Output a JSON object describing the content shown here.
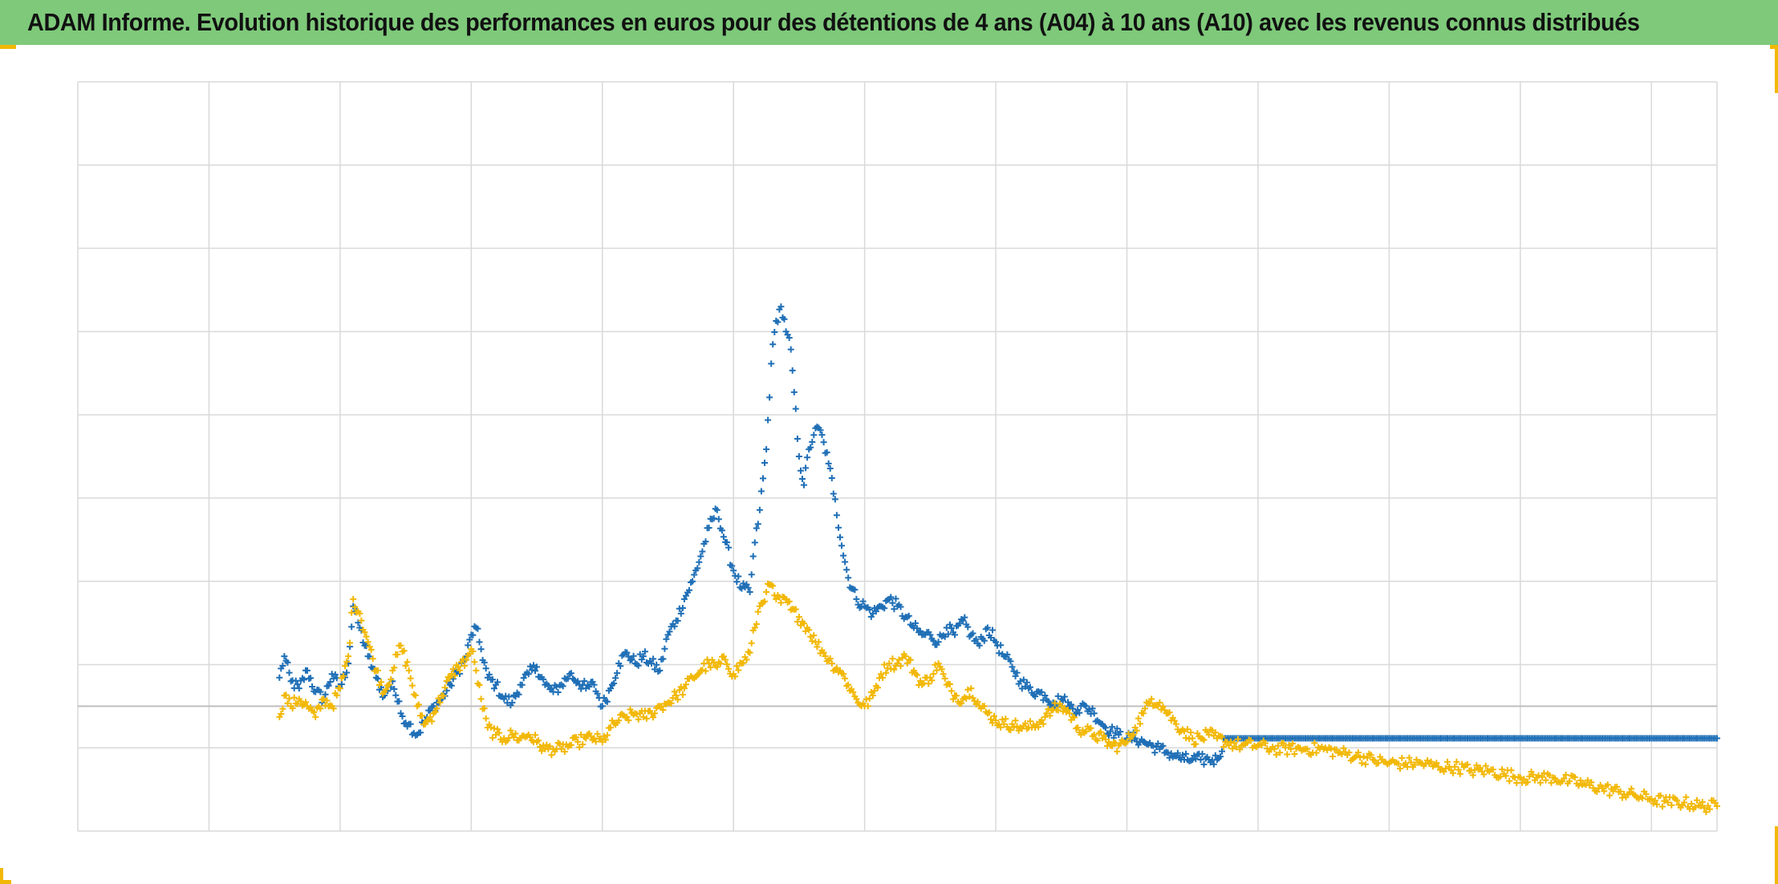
{
  "title": "ADAM Informe. Evolution historique des performances en euros pour des détentions de 4 ans (A04) à 10 ans (A10) avec les revenus connus distribués",
  "colors": {
    "header_bg": "#7ec97a",
    "frame_accent": "#f2b807",
    "grid": "#d9d9d9",
    "zero_line": "#bfbfbf"
  },
  "chart_data": {
    "type": "scatter",
    "title": "ADAM Informe. Evolution historique des performances en euros pour des détentions de 4 ans (A04) à 10 ans (A10) avec les revenus connus distribués",
    "xlabel": "",
    "ylabel": "",
    "axis_labels_visible": false,
    "legend": "none",
    "grid": true,
    "xlim": [
      0,
      1000
    ],
    "ylim": [
      -0.35,
      1.75
    ],
    "marker": "+",
    "series": [
      {
        "color": "#1f6fb6",
        "points": [
          [
            123,
            0.08
          ],
          [
            126,
            0.14
          ],
          [
            130,
            0.07
          ],
          [
            135,
            0.05
          ],
          [
            140,
            0.1
          ],
          [
            145,
            0.04
          ],
          [
            150,
            0.02
          ],
          [
            155,
            0.09
          ],
          [
            160,
            0.05
          ],
          [
            165,
            0.12
          ],
          [
            168,
            0.28
          ],
          [
            172,
            0.22
          ],
          [
            177,
            0.14
          ],
          [
            182,
            0.08
          ],
          [
            187,
            0.03
          ],
          [
            192,
            0.07
          ],
          [
            197,
            -0.02
          ],
          [
            202,
            -0.05
          ],
          [
            207,
            -0.08
          ],
          [
            212,
            -0.04
          ],
          [
            217,
            0.0
          ],
          [
            222,
            0.02
          ],
          [
            227,
            0.06
          ],
          [
            232,
            0.1
          ],
          [
            237,
            0.14
          ],
          [
            240,
            0.2
          ],
          [
            243,
            0.22
          ],
          [
            246,
            0.16
          ],
          [
            250,
            0.08
          ],
          [
            255,
            0.06
          ],
          [
            260,
            0.02
          ],
          [
            265,
            0.01
          ],
          [
            270,
            0.06
          ],
          [
            275,
            0.09
          ],
          [
            280,
            0.11
          ],
          [
            285,
            0.06
          ],
          [
            290,
            0.04
          ],
          [
            295,
            0.06
          ],
          [
            300,
            0.09
          ],
          [
            305,
            0.07
          ],
          [
            310,
            0.05
          ],
          [
            315,
            0.06
          ],
          [
            320,
            0.0
          ],
          [
            325,
            0.05
          ],
          [
            330,
            0.12
          ],
          [
            335,
            0.15
          ],
          [
            340,
            0.12
          ],
          [
            345,
            0.14
          ],
          [
            350,
            0.12
          ],
          [
            355,
            0.1
          ],
          [
            360,
            0.2
          ],
          [
            365,
            0.24
          ],
          [
            370,
            0.3
          ],
          [
            375,
            0.35
          ],
          [
            380,
            0.42
          ],
          [
            385,
            0.5
          ],
          [
            390,
            0.55
          ],
          [
            395,
            0.46
          ],
          [
            400,
            0.38
          ],
          [
            405,
            0.33
          ],
          [
            410,
            0.32
          ],
          [
            412,
            0.42
          ],
          [
            416,
            0.55
          ],
          [
            420,
            0.72
          ],
          [
            423,
            0.96
          ],
          [
            426,
            1.08
          ],
          [
            429,
            1.12
          ],
          [
            432,
            1.05
          ],
          [
            435,
            1.0
          ],
          [
            437,
            0.88
          ],
          [
            440,
            0.7
          ],
          [
            443,
            0.62
          ],
          [
            446,
            0.72
          ],
          [
            449,
            0.76
          ],
          [
            452,
            0.78
          ],
          [
            455,
            0.74
          ],
          [
            458,
            0.68
          ],
          [
            462,
            0.58
          ],
          [
            466,
            0.45
          ],
          [
            470,
            0.36
          ],
          [
            475,
            0.3
          ],
          [
            480,
            0.28
          ],
          [
            485,
            0.26
          ],
          [
            490,
            0.28
          ],
          [
            495,
            0.3
          ],
          [
            500,
            0.28
          ],
          [
            505,
            0.25
          ],
          [
            510,
            0.22
          ],
          [
            515,
            0.2
          ],
          [
            520,
            0.2
          ],
          [
            525,
            0.18
          ],
          [
            530,
            0.22
          ],
          [
            535,
            0.2
          ],
          [
            540,
            0.24
          ],
          [
            545,
            0.2
          ],
          [
            550,
            0.17
          ],
          [
            555,
            0.22
          ],
          [
            560,
            0.18
          ],
          [
            565,
            0.14
          ],
          [
            570,
            0.11
          ],
          [
            575,
            0.07
          ],
          [
            580,
            0.05
          ],
          [
            585,
            0.04
          ],
          [
            590,
            0.03
          ],
          [
            595,
            0.01
          ],
          [
            600,
            0.02
          ],
          [
            605,
            0.0
          ],
          [
            610,
            -0.01
          ],
          [
            615,
            0.0
          ],
          [
            620,
            -0.02
          ],
          [
            625,
            -0.05
          ],
          [
            630,
            -0.07
          ],
          [
            635,
            -0.08
          ],
          [
            640,
            -0.09
          ],
          [
            645,
            -0.09
          ],
          [
            650,
            -0.1
          ],
          [
            655,
            -0.11
          ],
          [
            660,
            -0.12
          ],
          [
            665,
            -0.13
          ],
          [
            670,
            -0.14
          ],
          [
            675,
            -0.15
          ],
          [
            680,
            -0.15
          ],
          [
            685,
            -0.15
          ],
          [
            690,
            -0.15
          ],
          [
            695,
            -0.15
          ],
          [
            700,
            -0.09
          ],
          [
            710,
            -0.09
          ],
          [
            720,
            -0.09
          ],
          [
            730,
            -0.09
          ],
          [
            740,
            -0.09
          ],
          [
            750,
            -0.09
          ],
          [
            760,
            -0.09
          ],
          [
            770,
            -0.09
          ],
          [
            780,
            -0.09
          ],
          [
            790,
            -0.09
          ],
          [
            800,
            -0.09
          ],
          [
            810,
            -0.09
          ],
          [
            820,
            -0.09
          ],
          [
            830,
            -0.09
          ],
          [
            840,
            -0.09
          ],
          [
            850,
            -0.09
          ],
          [
            860,
            -0.09
          ],
          [
            870,
            -0.09
          ],
          [
            880,
            -0.09
          ],
          [
            890,
            -0.09
          ],
          [
            900,
            -0.09
          ],
          [
            910,
            -0.09
          ],
          [
            920,
            -0.09
          ],
          [
            930,
            -0.09
          ],
          [
            940,
            -0.09
          ],
          [
            950,
            -0.09
          ],
          [
            960,
            -0.09
          ],
          [
            970,
            -0.09
          ],
          [
            980,
            -0.09
          ],
          [
            990,
            -0.09
          ],
          [
            1000,
            -0.09
          ]
        ]
      },
      {
        "color": "#f2b807",
        "points": [
          [
            123,
            -0.03
          ],
          [
            126,
            0.03
          ],
          [
            130,
            0.0
          ],
          [
            135,
            0.02
          ],
          [
            140,
            0.0
          ],
          [
            145,
            -0.03
          ],
          [
            150,
            0.02
          ],
          [
            155,
            0.0
          ],
          [
            160,
            0.05
          ],
          [
            165,
            0.14
          ],
          [
            168,
            0.3
          ],
          [
            172,
            0.26
          ],
          [
            177,
            0.18
          ],
          [
            182,
            0.1
          ],
          [
            187,
            0.04
          ],
          [
            192,
            0.1
          ],
          [
            197,
            0.17
          ],
          [
            202,
            0.1
          ],
          [
            207,
            0.0
          ],
          [
            212,
            -0.05
          ],
          [
            217,
            -0.02
          ],
          [
            222,
            0.03
          ],
          [
            227,
            0.08
          ],
          [
            232,
            0.11
          ],
          [
            237,
            0.13
          ],
          [
            240,
            0.16
          ],
          [
            243,
            0.1
          ],
          [
            246,
            0.02
          ],
          [
            250,
            -0.06
          ],
          [
            255,
            -0.08
          ],
          [
            260,
            -0.09
          ],
          [
            265,
            -0.08
          ],
          [
            270,
            -0.09
          ],
          [
            275,
            -0.08
          ],
          [
            280,
            -0.1
          ],
          [
            285,
            -0.12
          ],
          [
            290,
            -0.12
          ],
          [
            295,
            -0.12
          ],
          [
            300,
            -0.11
          ],
          [
            305,
            -0.1
          ],
          [
            310,
            -0.09
          ],
          [
            315,
            -0.09
          ],
          [
            320,
            -0.1
          ],
          [
            325,
            -0.06
          ],
          [
            330,
            -0.04
          ],
          [
            335,
            -0.03
          ],
          [
            340,
            -0.02
          ],
          [
            345,
            -0.03
          ],
          [
            350,
            -0.02
          ],
          [
            355,
            0.0
          ],
          [
            360,
            0.01
          ],
          [
            365,
            0.03
          ],
          [
            370,
            0.05
          ],
          [
            375,
            0.08
          ],
          [
            380,
            0.1
          ],
          [
            385,
            0.12
          ],
          [
            390,
            0.11
          ],
          [
            395,
            0.13
          ],
          [
            400,
            0.09
          ],
          [
            405,
            0.12
          ],
          [
            410,
            0.15
          ],
          [
            413,
            0.22
          ],
          [
            416,
            0.28
          ],
          [
            420,
            0.32
          ],
          [
            423,
            0.34
          ],
          [
            426,
            0.3
          ],
          [
            429,
            0.29
          ],
          [
            432,
            0.3
          ],
          [
            435,
            0.27
          ],
          [
            440,
            0.25
          ],
          [
            445,
            0.22
          ],
          [
            450,
            0.18
          ],
          [
            455,
            0.15
          ],
          [
            460,
            0.12
          ],
          [
            465,
            0.1
          ],
          [
            470,
            0.06
          ],
          [
            475,
            0.02
          ],
          [
            480,
            0.0
          ],
          [
            485,
            0.03
          ],
          [
            490,
            0.09
          ],
          [
            495,
            0.12
          ],
          [
            500,
            0.12
          ],
          [
            505,
            0.14
          ],
          [
            510,
            0.1
          ],
          [
            515,
            0.06
          ],
          [
            520,
            0.08
          ],
          [
            525,
            0.12
          ],
          [
            530,
            0.06
          ],
          [
            535,
            0.03
          ],
          [
            540,
            0.02
          ],
          [
            545,
            0.05
          ],
          [
            550,
            0.0
          ],
          [
            555,
            -0.02
          ],
          [
            560,
            -0.04
          ],
          [
            565,
            -0.05
          ],
          [
            570,
            -0.05
          ],
          [
            575,
            -0.06
          ],
          [
            580,
            -0.06
          ],
          [
            585,
            -0.05
          ],
          [
            590,
            -0.03
          ],
          [
            595,
            -0.01
          ],
          [
            600,
            0.0
          ],
          [
            605,
            -0.02
          ],
          [
            610,
            -0.06
          ],
          [
            615,
            -0.07
          ],
          [
            620,
            -0.08
          ],
          [
            625,
            -0.09
          ],
          [
            630,
            -0.11
          ],
          [
            635,
            -0.11
          ],
          [
            640,
            -0.1
          ],
          [
            645,
            -0.06
          ],
          [
            650,
            -0.02
          ],
          [
            655,
            0.02
          ],
          [
            660,
            0.01
          ],
          [
            665,
            -0.02
          ],
          [
            670,
            -0.05
          ],
          [
            675,
            -0.07
          ],
          [
            680,
            -0.09
          ],
          [
            685,
            -0.09
          ],
          [
            690,
            -0.08
          ],
          [
            695,
            -0.09
          ],
          [
            700,
            -0.1
          ],
          [
            710,
            -0.11
          ],
          [
            720,
            -0.11
          ],
          [
            730,
            -0.12
          ],
          [
            740,
            -0.12
          ],
          [
            750,
            -0.12
          ],
          [
            760,
            -0.12
          ],
          [
            770,
            -0.13
          ],
          [
            780,
            -0.14
          ],
          [
            790,
            -0.15
          ],
          [
            800,
            -0.16
          ],
          [
            810,
            -0.16
          ],
          [
            820,
            -0.16
          ],
          [
            830,
            -0.17
          ],
          [
            840,
            -0.17
          ],
          [
            850,
            -0.18
          ],
          [
            860,
            -0.18
          ],
          [
            870,
            -0.19
          ],
          [
            880,
            -0.2
          ],
          [
            890,
            -0.2
          ],
          [
            900,
            -0.2
          ],
          [
            910,
            -0.21
          ],
          [
            920,
            -0.22
          ],
          [
            930,
            -0.23
          ],
          [
            940,
            -0.24
          ],
          [
            950,
            -0.25
          ],
          [
            960,
            -0.26
          ],
          [
            970,
            -0.27
          ],
          [
            980,
            -0.27
          ],
          [
            990,
            -0.28
          ],
          [
            1000,
            -0.28
          ]
        ]
      }
    ]
  }
}
